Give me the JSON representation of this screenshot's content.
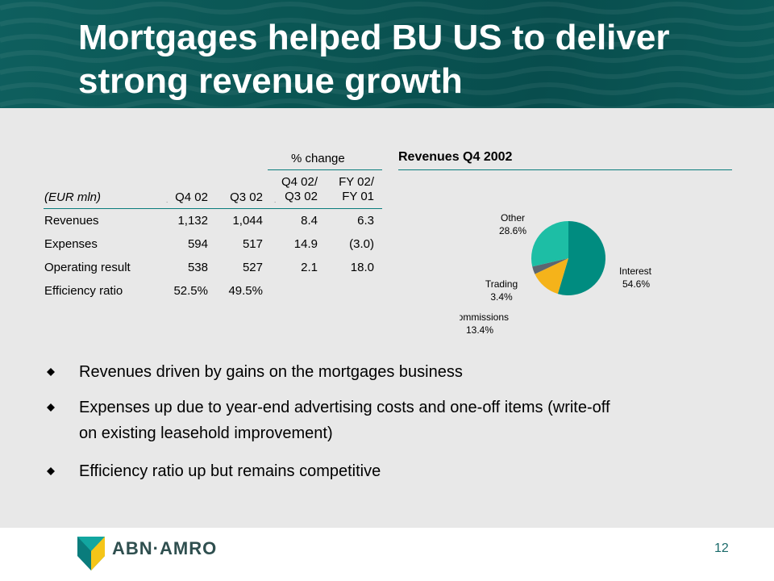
{
  "slide": {
    "title_line1": "Mortgages helped BU US to deliver",
    "title_line2": "strong revenue growth",
    "page_number": "12"
  },
  "table": {
    "change_header": "% change",
    "unit_label": "(EUR mln)",
    "col_q4": "Q4 02",
    "col_q3": "Q3 02",
    "col_qq_1": "Q4 02/",
    "col_qq_2": "Q3 02",
    "col_fy_1": "FY 02/",
    "col_fy_2": "FY 01",
    "rows": [
      {
        "label": "Revenues",
        "q4": "1,132",
        "q3": "1,044",
        "qq": "8.4",
        "fy": "6.3"
      },
      {
        "label": "Expenses",
        "q4": "594",
        "q3": "517",
        "qq": "14.9",
        "fy": "(3.0)"
      },
      {
        "label": "Operating result",
        "q4": "538",
        "q3": "527",
        "qq": "2.1",
        "fy": "18.0"
      },
      {
        "label": "Efficiency ratio",
        "q4": "52.5%",
        "q3": "49.5%",
        "qq": "",
        "fy": ""
      }
    ]
  },
  "chart_data": {
    "type": "pie",
    "title": "Revenues Q4 2002",
    "slices": [
      {
        "name": "Interest",
        "value": 54.6,
        "label": "54.6%",
        "color": "#008c80"
      },
      {
        "name": "Commissions",
        "value": 13.4,
        "label": "13.4%",
        "color": "#f5b31a"
      },
      {
        "name": "Trading",
        "value": 3.4,
        "label": "3.4%",
        "color": "#5c6670"
      },
      {
        "name": "Other",
        "value": 28.6,
        "label": "28.6%",
        "color": "#1dbea5"
      }
    ]
  },
  "bullets": [
    {
      "text": "Revenues driven by gains on the mortgages business"
    },
    {
      "line1": "Expenses up due to year-end advertising costs and one-off items (write-off",
      "line2": "on existing leasehold improvement)"
    },
    {
      "text": "Efficiency ratio up but remains competitive"
    }
  ],
  "logo": {
    "text": "ABN·AMRO",
    "icon": "abn-amro-shield-icon"
  },
  "colors": {
    "header": "#0a5553",
    "accent": "#0a7c7c",
    "background": "#e8e8e8"
  }
}
